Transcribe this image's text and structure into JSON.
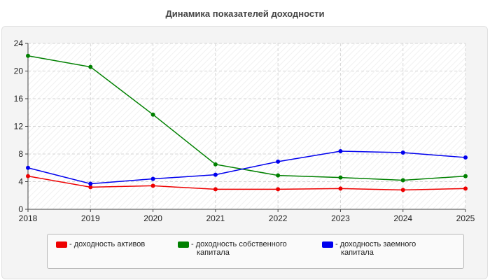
{
  "chart_data": {
    "type": "line",
    "title": "Динамика показателей доходности",
    "x": [
      "2018",
      "2019",
      "2020",
      "2021",
      "2022",
      "2023",
      "2024",
      "2025"
    ],
    "ylim": [
      0,
      24
    ],
    "yticks": [
      0,
      4,
      8,
      12,
      16,
      20,
      24
    ],
    "grid": true,
    "legend_position": "bottom",
    "series": [
      {
        "name": "- доходность активов",
        "color": "#ee0000",
        "values": [
          4.8,
          3.2,
          3.4,
          2.9,
          2.9,
          3.0,
          2.8,
          3.0
        ]
      },
      {
        "name": "- доходность собственного капитала",
        "color": "#008000",
        "values": [
          22.2,
          20.6,
          13.7,
          6.5,
          4.9,
          4.6,
          4.2,
          4.8
        ]
      },
      {
        "name": "- доходность заемного капитала",
        "color": "#0000ee",
        "values": [
          6.0,
          3.7,
          4.4,
          5.0,
          6.9,
          8.4,
          8.2,
          7.5
        ]
      }
    ]
  },
  "legend": [
    {
      "lines": [
        "- доходность активов"
      ]
    },
    {
      "lines": [
        "- доходность собственного",
        "капитала"
      ]
    },
    {
      "lines": [
        "- доходность заемного",
        "капитала"
      ]
    }
  ]
}
